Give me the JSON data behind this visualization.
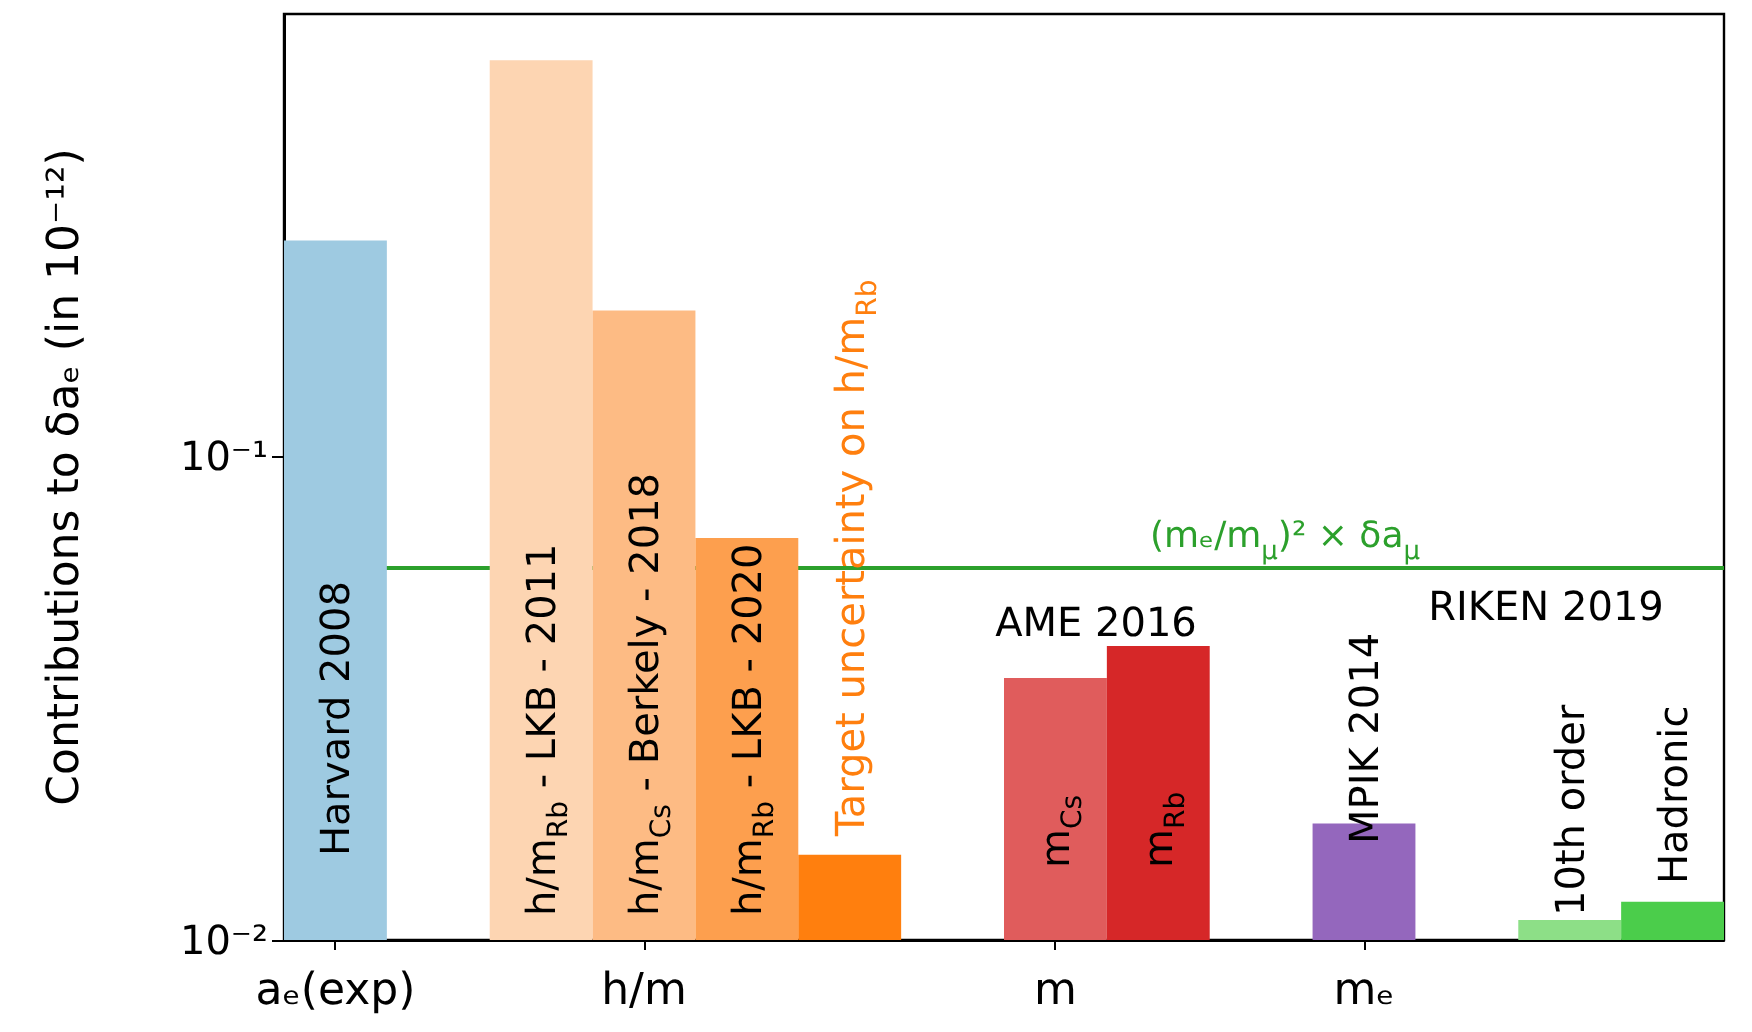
{
  "chart_data": {
    "type": "bar",
    "ylabel": "Contributions to δaₑ (in 10⁻¹²)",
    "categories": [
      "aₑ(exp)",
      null,
      null,
      "h/m",
      null,
      null,
      null,
      "m",
      null,
      null,
      "mₑ",
      null,
      null,
      null
    ],
    "values": [
      0.279,
      null,
      0.658,
      0.2,
      0.0677,
      0.015,
      null,
      0.0348,
      0.0405,
      null,
      0.0174,
      null,
      0.011,
      0.012
    ],
    "colors": [
      "#9ecae1",
      null,
      "#fdd5b2",
      "#fdbb84",
      "#fd9f4e",
      "#ff7f0e",
      null,
      "#e05c5c",
      "#d62728",
      null,
      "#9467bd",
      null,
      "#8ddf87",
      "#4bcd4b"
    ],
    "ylim": [
      0.01,
      0.82
    ],
    "log": true,
    "yticks": [
      {
        "value": 0.01,
        "label": "10⁻²"
      },
      {
        "value": 0.1,
        "label": "10⁻¹"
      }
    ],
    "ref_lines": [
      {
        "axis": "y",
        "value": 0.0587,
        "label": "(mₑ/m$_{μ}$)² × δa$_{μ}$",
        "color": "#2ca02c"
      }
    ],
    "annotations": [
      "Harvard 2008",
      "h/m$_{Rb}$ - LKB - 2011",
      "h/m$_{Cs}$ - Berkely - 2018",
      "h/m$_{Rb}$ - LKB - 2020",
      "Target uncertainty on h/m$_{Rb}$",
      "m$_{Cs}$",
      "m$_{Rb}$",
      "MPIK 2014",
      "10th order",
      "Hadronic",
      "AME 2016",
      "RIKEN 2019"
    ]
  }
}
